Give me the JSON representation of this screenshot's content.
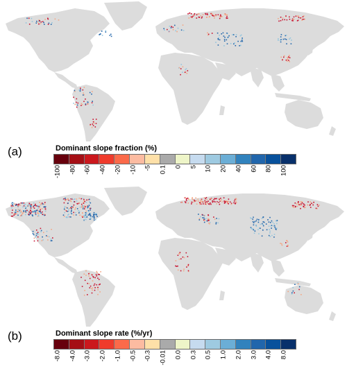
{
  "panels": [
    {
      "label": "(a)",
      "legend_title": "Dominant slope fraction (%)",
      "ticks": [
        "-100",
        "-80",
        "-60",
        "-40",
        "-20",
        "-10",
        "-5",
        "0.1",
        "0",
        "5",
        "10",
        "20",
        "40",
        "60",
        "80",
        "100"
      ]
    },
    {
      "label": "(b)",
      "legend_title": "Dominant slope rate (%/yr)",
      "ticks": [
        "-8.0",
        "-4.0",
        "-3.0",
        "-2.0",
        "-1.0",
        "-0.5",
        "-0.3",
        "-0.01",
        "0.0",
        "0.3",
        "0.5",
        "1.0",
        "2.0",
        "3.0",
        "4.0",
        "8.0"
      ]
    }
  ],
  "colorbar_colors": [
    "#67000d",
    "#a50f15",
    "#cb181d",
    "#ef3b2c",
    "#fb6a4a",
    "#fcbba1",
    "#fee0a8",
    "#aaaaaa",
    "#eef5c8",
    "#c6dbef",
    "#9ecae1",
    "#6baed6",
    "#3182bd",
    "#2166ac",
    "#08519c",
    "#08306b"
  ],
  "map_colors": {
    "land": "#dcdcdc",
    "negative_dark": "#c8102e",
    "negative_light": "#f4a582",
    "positive_light": "#92c5de",
    "positive_dark": "#2166ac"
  }
}
